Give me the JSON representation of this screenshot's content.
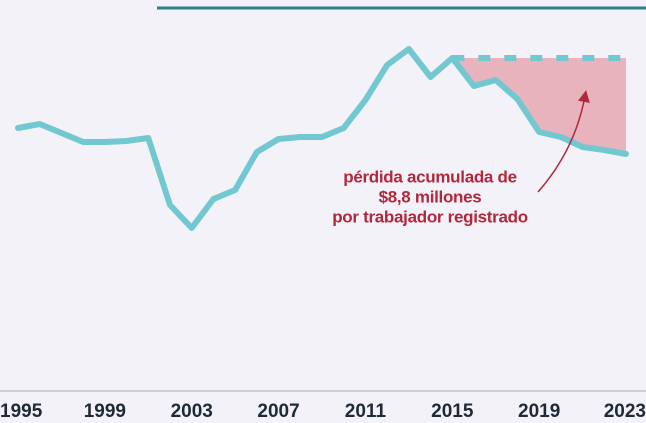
{
  "chart_data": {
    "type": "line",
    "annotation": [
      "pérdida acumulada de",
      "$8,8 millones",
      "por trabajador registrado"
    ],
    "xlim": [
      1995,
      2023
    ],
    "xticks": [
      1995,
      1999,
      2003,
      2007,
      2011,
      2015,
      2019,
      2023
    ],
    "ylim": [
      0,
      100
    ],
    "series": [
      {
        "color": "#72c8d0",
        "x": [
          1995,
          1996,
          1997,
          1998,
          1999,
          2000,
          2001,
          2002,
          2003,
          2004,
          2005,
          2006,
          2007,
          2008,
          2009,
          2010,
          2011,
          2012,
          2013,
          2014,
          2015,
          2016,
          2017,
          2018,
          2019,
          2020,
          2021,
          2022,
          2023
        ],
        "values": [
          68,
          69,
          66.75,
          64.5,
          64.5,
          64.75,
          65.5,
          48.75,
          43,
          50.25,
          52.5,
          62,
          65.25,
          65.75,
          65.75,
          68,
          75,
          83.75,
          87.75,
          80.75,
          85.5,
          78.5,
          80,
          75.25,
          67,
          65.75,
          63.25,
          62.5,
          61.5
        ]
      },
      {
        "color": "#72c8d0",
        "dashed": true,
        "x": [
          2015,
          2016,
          2017,
          2018,
          2019,
          2020,
          2021,
          2022,
          2023
        ],
        "values": [
          85.5,
          85.5,
          85.5,
          85.5,
          85.5,
          85.5,
          85.5,
          85.5,
          85.5
        ]
      }
    ],
    "area_color": "#e8b3bd"
  }
}
